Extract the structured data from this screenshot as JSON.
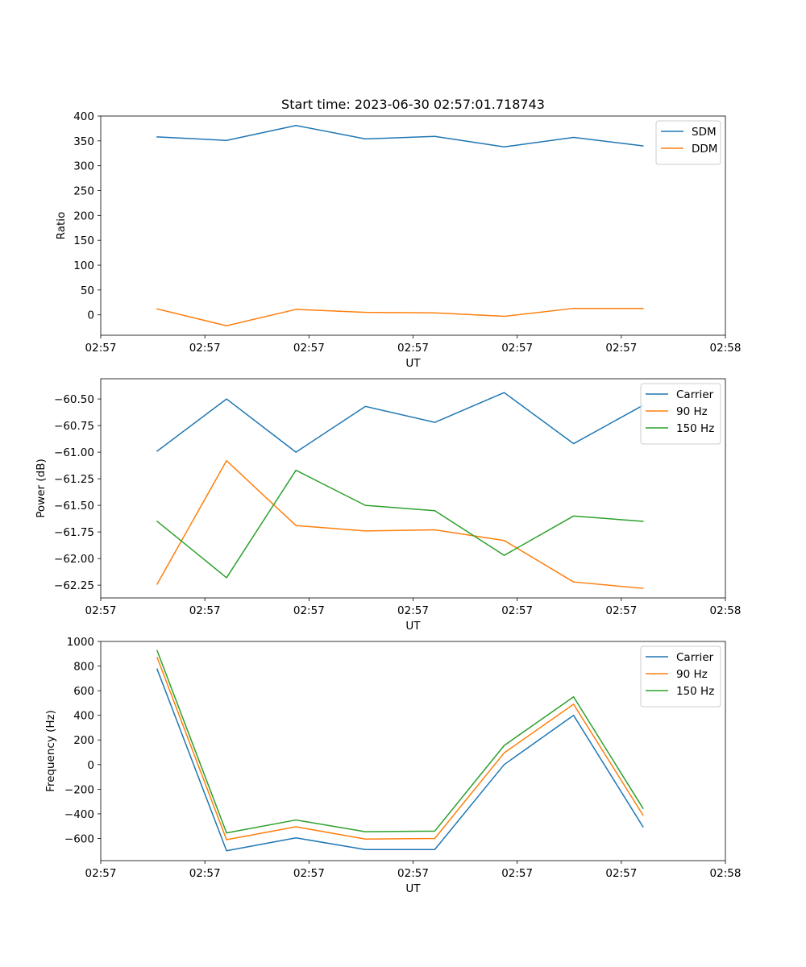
{
  "chart_data": [
    {
      "type": "line",
      "title": "Start time: 2023-06-30 02:57:01.718743",
      "xlabel": "UT",
      "ylabel": "Ratio",
      "x": [
        1,
        2,
        3,
        4,
        5,
        6,
        7,
        8
      ],
      "xlim": [
        0.1875,
        9.1875
      ],
      "xticks": [
        0.1875,
        1.6875,
        3.1875,
        4.6875,
        6.1875,
        7.6875,
        9.1875
      ],
      "xtick_labels": [
        "02:57",
        "02:57",
        "02:57",
        "02:57",
        "02:57",
        "02:57",
        "02:58"
      ],
      "ylim": [
        -41,
        400
      ],
      "yticks": [
        0,
        50,
        100,
        150,
        200,
        250,
        300,
        350,
        400
      ],
      "ytick_labels": [
        "0",
        "50",
        "100",
        "150",
        "200",
        "250",
        "300",
        "350",
        "400"
      ],
      "legend_position": "top-right",
      "grid": false,
      "series": [
        {
          "name": "SDM",
          "color": "#1f77b4",
          "values": [
            358,
            351,
            381,
            354,
            359,
            338,
            357,
            340
          ]
        },
        {
          "name": "DDM",
          "color": "#ff7f0e",
          "values": [
            12,
            -22,
            11,
            5,
            4,
            -3,
            13,
            13
          ]
        }
      ]
    },
    {
      "type": "line",
      "title": "",
      "xlabel": "UT",
      "ylabel": "Power (dB)",
      "x": [
        1,
        2,
        3,
        4,
        5,
        6,
        7,
        8
      ],
      "xlim": [
        0.1875,
        9.1875
      ],
      "xticks": [
        0.1875,
        1.6875,
        3.1875,
        4.6875,
        6.1875,
        7.6875,
        9.1875
      ],
      "xtick_labels": [
        "02:57",
        "02:57",
        "02:57",
        "02:57",
        "02:57",
        "02:57",
        "02:58"
      ],
      "ylim": [
        -62.37,
        -60.31
      ],
      "yticks": [
        -62.25,
        -62.0,
        -61.75,
        -61.5,
        -61.25,
        -61.0,
        -60.75,
        -60.5
      ],
      "ytick_labels": [
        "−62.25",
        "−62.00",
        "−61.75",
        "−61.50",
        "−61.25",
        "−61.00",
        "−60.75",
        "−60.50"
      ],
      "legend_position": "top-right",
      "grid": false,
      "series": [
        {
          "name": "Carrier",
          "color": "#1f77b4",
          "values": [
            -60.99,
            -60.5,
            -61.0,
            -60.57,
            -60.72,
            -60.44,
            -60.92,
            -60.56
          ]
        },
        {
          "name": "90 Hz",
          "color": "#ff7f0e",
          "values": [
            -62.24,
            -61.08,
            -61.69,
            -61.74,
            -61.73,
            -61.83,
            -62.22,
            -62.28
          ]
        },
        {
          "name": "150 Hz",
          "color": "#2ca02c",
          "values": [
            -61.65,
            -62.18,
            -61.17,
            -61.5,
            -61.55,
            -61.97,
            -61.6,
            -61.65
          ]
        }
      ]
    },
    {
      "type": "line",
      "title": "",
      "xlabel": "UT",
      "ylabel": "Frequency (Hz)",
      "x": [
        1,
        2,
        3,
        4,
        5,
        6,
        7,
        8
      ],
      "xlim": [
        0.1875,
        9.1875
      ],
      "xticks": [
        0.1875,
        1.6875,
        3.1875,
        4.6875,
        6.1875,
        7.6875,
        9.1875
      ],
      "xtick_labels": [
        "02:57",
        "02:57",
        "02:57",
        "02:57",
        "02:57",
        "02:57",
        "02:58"
      ],
      "ylim": [
        -780,
        1000
      ],
      "yticks": [
        -600,
        -400,
        -200,
        0,
        200,
        400,
        600,
        800,
        1000
      ],
      "ytick_labels": [
        "−600",
        "−400",
        "−200",
        "0",
        "200",
        "400",
        "600",
        "800",
        "1000"
      ],
      "legend_position": "top-right",
      "grid": false,
      "series": [
        {
          "name": "Carrier",
          "color": "#1f77b4",
          "values": [
            775,
            -700,
            -595,
            -690,
            -690,
            0,
            400,
            -505
          ]
        },
        {
          "name": "90 Hz",
          "color": "#ff7f0e",
          "values": [
            870,
            -610,
            -505,
            -605,
            -600,
            95,
            490,
            -410
          ]
        },
        {
          "name": "150 Hz",
          "color": "#2ca02c",
          "values": [
            925,
            -555,
            -450,
            -545,
            -540,
            155,
            550,
            -355
          ]
        }
      ]
    }
  ]
}
